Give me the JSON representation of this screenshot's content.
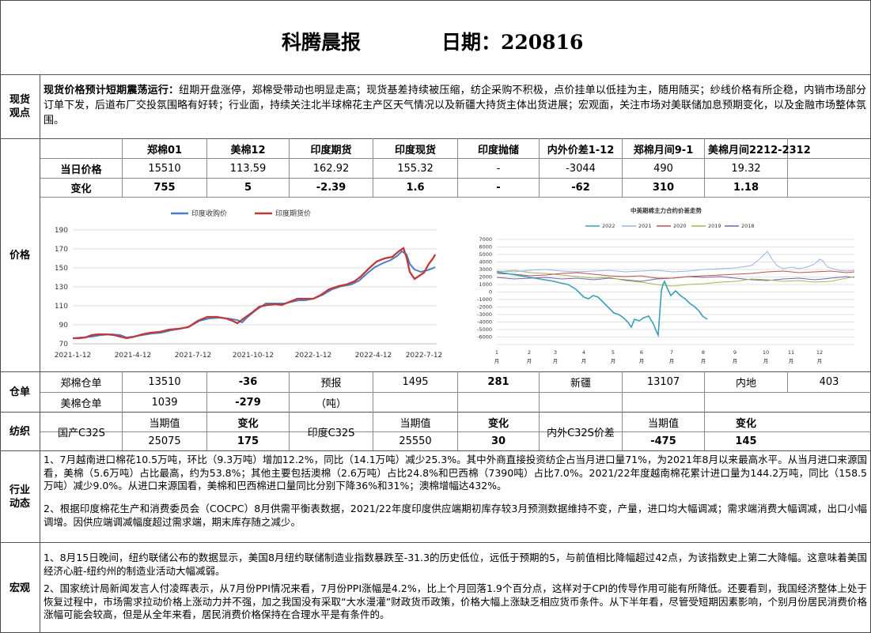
{
  "header": {
    "title": "科腾晨报",
    "date_label": "日期：220816"
  },
  "sections": {
    "spot": "现货观点",
    "price": "价格",
    "warehouse": "仓单",
    "textile": "纺织",
    "industry": "行业动态",
    "macro": "宏观"
  },
  "spot": {
    "headline": "现货价格预计短期震荡运行：",
    "body": "纽期开盘涨停，郑棉受带动也明显走高；现货基差持续被压缩，纺企采购不积极，点价挂单以低挂为主，随用随买；纱线价格有所企稳，内销市场部分订单下发，后道布厂交投氛围略有好转；行业面，持续关注北半球棉花主产区天气情况以及新疆大持货主体出货进展；宏观面，关注市场对美联储加息预期变化，以及金融市场整体氛围。"
  },
  "price_table": {
    "headers": [
      "郑棉01",
      "美棉12",
      "印度期货",
      "印度现货",
      "印度抛储",
      "内外价差1-12",
      "郑棉月间9-1",
      "美棉月间2212-2312"
    ],
    "row1_label": "当日价格",
    "row1": [
      "15510",
      "113.59",
      "162.92",
      "155.32",
      "-",
      "-3044",
      "490",
      "19.32"
    ],
    "row2_label": "变化",
    "row2": [
      "755",
      "5",
      "-2.39",
      "1.6",
      "-",
      "-62",
      "310",
      "1.18"
    ]
  },
  "chart_data": [
    {
      "type": "line",
      "title": "",
      "series": [
        {
          "name": "印度收购价",
          "color": "#4a7fc4"
        },
        {
          "name": "印度期货价",
          "color": "#c0393b"
        }
      ],
      "x_ticks": [
        "2021-1-12",
        "2021-4-12",
        "2021-7-12",
        "2021-10-12",
        "2022-1-12",
        "2022-4-12",
        "2022-7-12"
      ],
      "y_ticks": [
        "70",
        "90",
        "110",
        "130",
        "150",
        "170",
        "190"
      ],
      "ylim": [
        70,
        190
      ],
      "grid": "horizontal"
    },
    {
      "type": "line",
      "title": "中美期棉主力合约价差走势",
      "series": [
        {
          "name": "2022",
          "color": "#3a9fb7"
        },
        {
          "name": "2021",
          "color": "#9ab3e6"
        },
        {
          "name": "2020",
          "color": "#c0504d"
        },
        {
          "name": "2019",
          "color": "#9bbb59"
        },
        {
          "name": "2018",
          "color": "#7e5fa8"
        }
      ],
      "y_ticks": [
        "7000",
        "6000",
        "5000",
        "4000",
        "3000",
        "2000",
        "1000",
        "0",
        "-1000",
        "-2000",
        "-3000",
        "-4000",
        "-5000",
        "-6000"
      ],
      "ylim": [
        -6000,
        7000
      ],
      "x_ticks": [
        "1\n月",
        "2\n月",
        "3\n月",
        "4\n月",
        "5\n月",
        "6\n月",
        "7\n月",
        "8\n月",
        "9\n月",
        "10\n月",
        "11\n月",
        "12\n月"
      ],
      "grid": "horizontal"
    }
  ],
  "warehouse": {
    "zheng_label": "郑棉仓单",
    "zheng_value": "13510",
    "zheng_change": "-36",
    "forecast_label": "预报",
    "forecast_value": "1495",
    "forecast_change": "281",
    "xinjiang_label": "新疆",
    "xinjiang_value": "13107",
    "inland_label": "内地",
    "inland_value": "403",
    "us_label": "美棉仓单",
    "us_value": "1039",
    "us_change": "-279",
    "unit": "（吨）"
  },
  "textile": {
    "cur_label": "当期值",
    "chg_label": "变化",
    "domestic_label": "国产C32S",
    "domestic_value": "25075",
    "domestic_change": "175",
    "india_label": "印度C32S",
    "india_value": "25550",
    "india_change": "30",
    "spread_label": "内外C32S价差",
    "spread_value": "-475",
    "spread_change": "145"
  },
  "industry": {
    "p1": "1、7月越南进口棉花10.5万吨，环比（9.3万吨）增加12.2%，同比（14.1万吨）减少25.3%。其中外商直接投资纺企占当月进口量71%，为2021年8月以来最高水平。从当月进口来源国看，美棉（5.6万吨）占比最高，约为53.8%；其他主要包括澳棉（2.6万吨）占比24.8%和巴西棉（7390吨）占比7.0%。2021/22年度越南棉花累计进口量为144.2万吨，同比（158.5万吨）减少9.0%。从进口来源国看，美棉和巴西棉进口量同比分别下降36%和31%；澳棉增幅达432%。",
    "p2": "2、根据印度棉花生产和消费委员会（COCPC）8月供需平衡表数据，2021/22年度印度供应端期初库存较3月预测数据维持不变，产量，进口均大幅调减；需求端消费大幅调减，出口小幅调增。因供应端调减幅度超过需求端，期末库存随之减少。"
  },
  "macro": {
    "p1": "1、8月15日晚间，纽约联储公布的数据显示，美国8月纽约联储制造业指数暴跌至-31.3的历史低位，远低于预期的5，与前值相比降幅超过42点，为该指数史上第二大降幅。这意味着美国经济心脏-纽约州的制造业活动大幅减弱。",
    "p2": "2、国家统计局新闻发言人付凌晖表示，从7月份PPI情况来看，7月份PPI涨幅是4.2%，比上个月回落1.9个百分点，这样对于CPI的传导作用可能有所降低。还要看到，我国经济整体上处于恢复过程中，市场需求拉动价格上涨动力并不强，加之我国没有采取“大水漫灌”财政货币政策，价格大幅上涨缺乏相应货币条件。从下半年看，尽管受短期因素影响，个别月份居民消费价格涨幅可能会较高，但是从全年来看，居民消费价格保持在合理水平是有条件的。"
  }
}
